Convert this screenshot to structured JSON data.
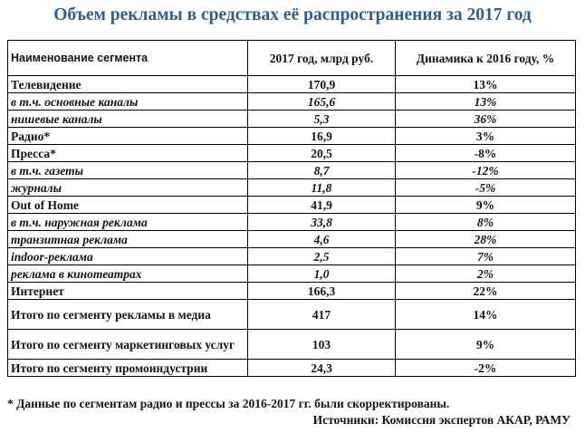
{
  "title": "Объем рекламы в средствах её распространения за 2017 год",
  "table": {
    "headers": [
      "Наименование сегмента",
      "2017 год, млрд руб.",
      "Динамика к 2016 году, %"
    ],
    "rows": [
      {
        "name": "Телевидение",
        "value": "170,9",
        "change": "13%",
        "sub": false
      },
      {
        "name": "в т.ч. основные каналы",
        "value": "165,6",
        "change": "13%",
        "sub": true
      },
      {
        "name": "нишевые каналы",
        "value": "5,3",
        "change": "36%",
        "sub": true
      },
      {
        "name": "Радио*",
        "value": "16,9",
        "change": "3%",
        "sub": false
      },
      {
        "name": "Пресса*",
        "value": "20,5",
        "change": "-8%",
        "sub": false
      },
      {
        "name": "в т.ч. газеты",
        "value": "8,7",
        "change": "-12%",
        "sub": true
      },
      {
        "name": "журналы",
        "value": "11,8",
        "change": "-5%",
        "sub": true
      },
      {
        "name": "Out of Home",
        "value": "41,9",
        "change": "9%",
        "sub": false
      },
      {
        "name": "в т.ч. наружная реклама",
        "value": "33,8",
        "change": "8%",
        "sub": true
      },
      {
        "name": "транзитная реклама",
        "value": "4,6",
        "change": "28%",
        "sub": true
      },
      {
        "name": "indoor-реклама",
        "value": "2,5",
        "change": "7%",
        "sub": true
      },
      {
        "name": "реклама в кинотеатрах",
        "value": "1,0",
        "change": "2%",
        "sub": true
      },
      {
        "name": "Интернет",
        "value": "166,3",
        "change": "22%",
        "sub": false
      },
      {
        "name": "Итого по сегменту рекламы в медиа",
        "value": "417",
        "change": "14%",
        "sub": false
      },
      {
        "name": "Итого по сегменту маркетинговых услуг",
        "value": "103",
        "change": "9%",
        "sub": false
      },
      {
        "name": "Итого по сегменту промоиндустрии",
        "value": "24,3",
        "change": "-2%",
        "sub": false
      }
    ]
  },
  "footnote": "* Данные по сегментам радио и прессы за 2016-2017 гг. были скорректированы.",
  "source": "Источники: Комиссия экспертов АКАР, РАМУ"
}
